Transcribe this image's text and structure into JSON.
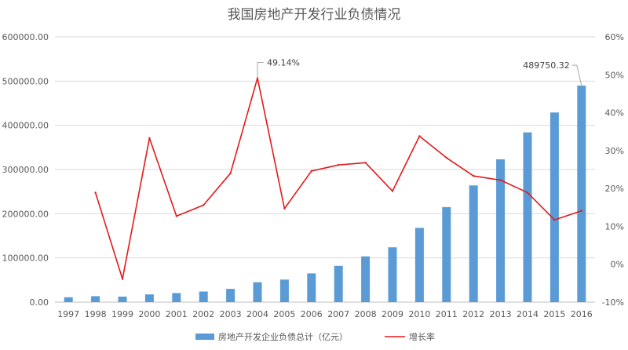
{
  "chart_data": {
    "type": "bar+line",
    "title": "我国房地产开发行业负债情况",
    "categories": [
      "1997",
      "1998",
      "1999",
      "2000",
      "2001",
      "2002",
      "2003",
      "2004",
      "2005",
      "2006",
      "2007",
      "2008",
      "2009",
      "2010",
      "2011",
      "2012",
      "2013",
      "2014",
      "2015",
      "2016"
    ],
    "series": [
      {
        "name": "房地产开发企业负债总计（亿元）",
        "type": "bar",
        "axis": "left",
        "color": "#5b9bd5",
        "values": [
          11000,
          13500,
          12500,
          17500,
          20500,
          24000,
          30000,
          45000,
          51000,
          65000,
          82000,
          103500,
          124000,
          168000,
          215000,
          264000,
          323000,
          384000,
          429000,
          489750.32
        ]
      },
      {
        "name": "增长率",
        "type": "line",
        "axis": "right",
        "color": "#e31a1c",
        "values": [
          null,
          18.9,
          -3.9,
          33.3,
          12.7,
          15.6,
          24.0,
          49.14,
          14.7,
          24.6,
          26.2,
          26.8,
          19.3,
          33.8,
          28.1,
          23.3,
          22.2,
          18.9,
          11.7,
          14.1
        ]
      }
    ],
    "y_left": {
      "min": 0,
      "max": 600000,
      "step": 100000,
      "tick_labels": [
        "0.00",
        "100000.00",
        "200000.00",
        "300000.00",
        "400000.00",
        "500000.00",
        "600000.00"
      ]
    },
    "y_right": {
      "min": -10,
      "max": 60,
      "step": 10,
      "tick_labels": [
        "-10%",
        "0%",
        "10%",
        "20%",
        "30%",
        "40%",
        "50%",
        "60%"
      ]
    },
    "annotations": [
      {
        "series": "增长率",
        "category": "2004",
        "text": "49.14%"
      },
      {
        "series": "房地产开发企业负债总计（亿元）",
        "category": "2016",
        "text": "489750.32"
      }
    ],
    "legend": {
      "position": "bottom",
      "entries": [
        "房地产开发企业负债总计（亿元）",
        "增长率"
      ]
    },
    "grid": true
  }
}
